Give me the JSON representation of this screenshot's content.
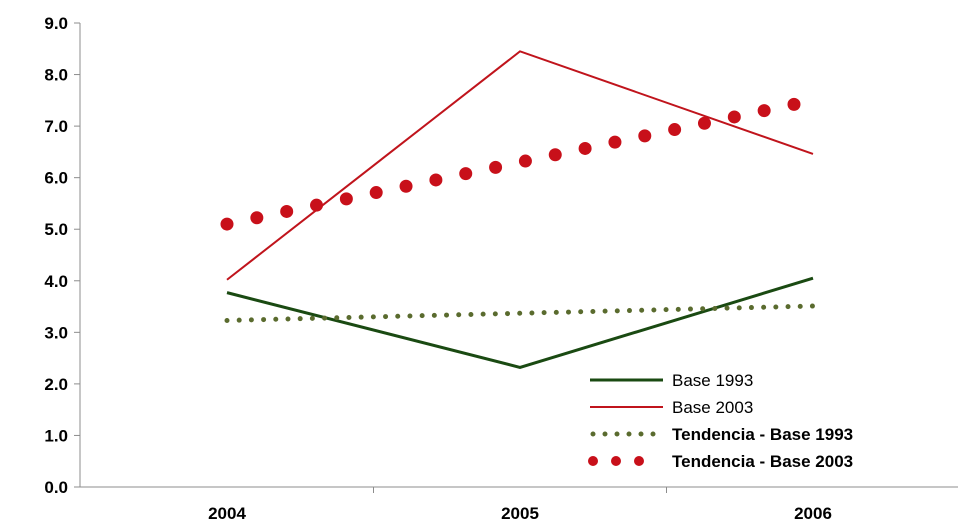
{
  "chart_data": {
    "type": "line",
    "title": "",
    "xlabel": "",
    "ylabel": "",
    "categories": [
      "2004",
      "2005",
      "2006"
    ],
    "ylim": [
      0,
      9
    ],
    "yticks": [
      "0.0",
      "1.0",
      "2.0",
      "3.0",
      "4.0",
      "5.0",
      "6.0",
      "7.0",
      "8.0",
      "9.0"
    ],
    "grid": false,
    "legend_position": "bottom-right",
    "series": [
      {
        "name": "Base 1993",
        "values": [
          3.77,
          2.32,
          4.05
        ],
        "color": "#1a4a12",
        "style": "solid",
        "bold_label": false
      },
      {
        "name": "Base 2003",
        "values": [
          4.02,
          8.45,
          6.46
        ],
        "color": "#c0141c",
        "style": "solid",
        "bold_label": false
      },
      {
        "name": "Tendencia - Base 1993",
        "values": [
          3.23,
          3.37,
          3.51
        ],
        "color": "#5a6b2e",
        "style": "dotted-small",
        "bold_label": true
      },
      {
        "name": "Tendencia - Base 2003",
        "values": [
          5.1,
          6.3,
          7.5
        ],
        "color": "#c8101a",
        "style": "dotted-large",
        "bold_label": true
      }
    ]
  }
}
